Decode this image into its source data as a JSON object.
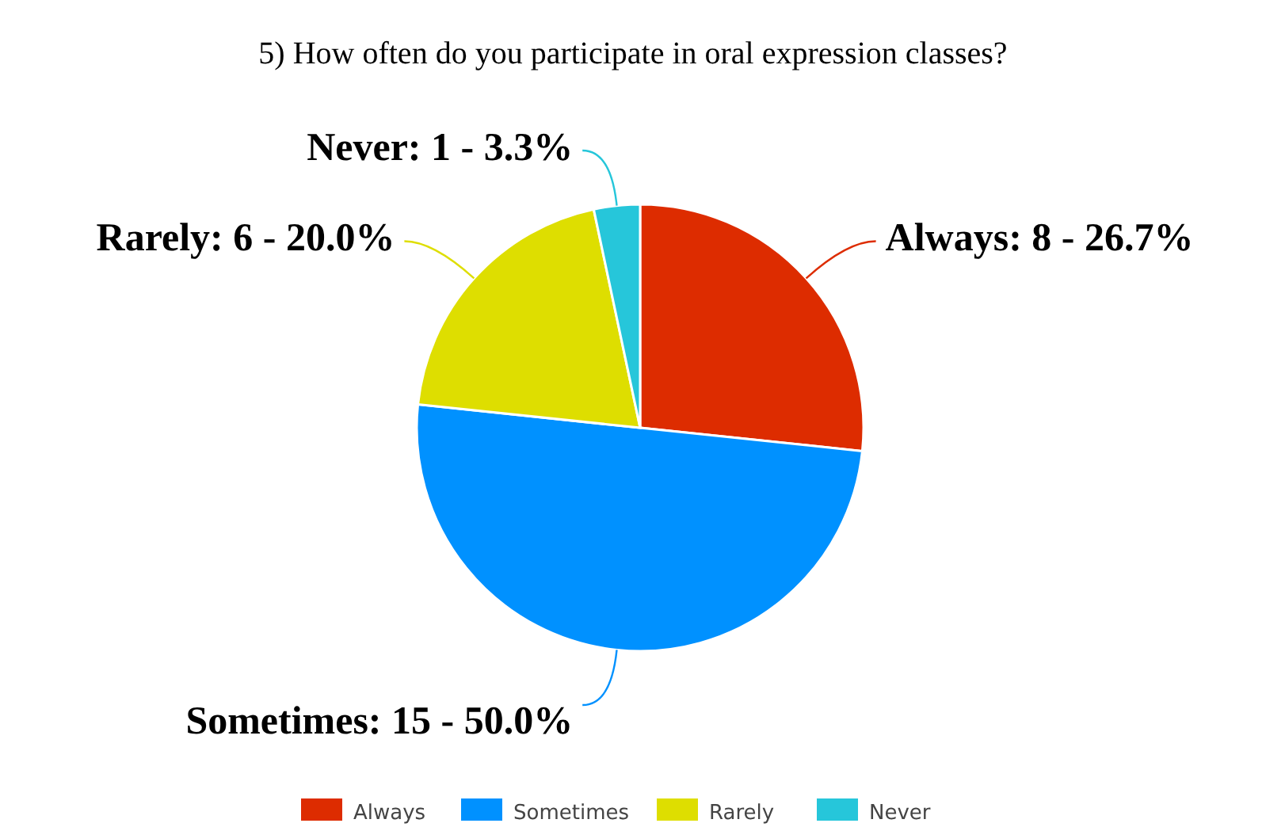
{
  "chart_data": {
    "type": "pie",
    "title": "5) How often do you participate in oral expression classes?",
    "categories": [
      "Always",
      "Sometimes",
      "Rarely",
      "Never"
    ],
    "values": [
      8,
      15,
      6,
      1
    ],
    "colors": [
      "#dd2c00",
      "#0091ff",
      "#dede00",
      "#26c6da"
    ],
    "value_labels": [
      "Always: 8 - 26.7%",
      "Sometimes: 15 - 50.0%",
      "Rarely: 6 - 20.0%",
      "Never: 1 - 3.3%"
    ],
    "legend": "bottom"
  }
}
